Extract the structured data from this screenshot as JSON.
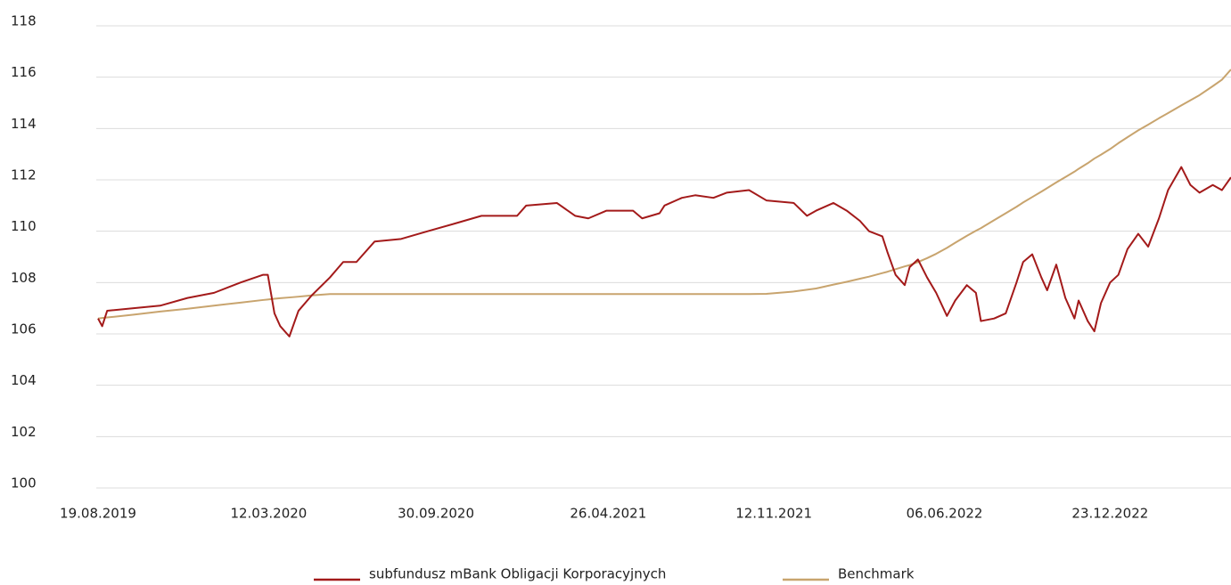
{
  "chart_data": {
    "type": "line",
    "x": [
      "19.08.2019",
      "24.08.2019",
      "30.08.2019",
      "01.10.2019",
      "02.11.2019",
      "05.12.2019",
      "06.01.2020",
      "07.02.2020",
      "05.03.2020",
      "11.03.2020",
      "19.03.2020",
      "26.03.2020",
      "06.04.2020",
      "17.04.2020",
      "03.05.2020",
      "25.05.2020",
      "10.06.2020",
      "26.06.2020",
      "18.07.2020",
      "19.08.2020",
      "20.09.2020",
      "23.10.2020",
      "24.11.2020",
      "06.01.2021",
      "17.01.2021",
      "23.02.2021",
      "17.03.2021",
      "02.04.2021",
      "24.04.2021",
      "26.05.2021",
      "06.06.2021",
      "27.06.2021",
      "03.07.2021",
      "24.07.2021",
      "09.08.2021",
      "31.08.2021",
      "16.09.2021",
      "13.10.2021",
      "03.11.2021",
      "06.12.2021",
      "22.12.2021",
      "02.01.2022",
      "23.01.2022",
      "08.02.2022",
      "24.02.2022",
      "07.03.2022",
      "23.03.2022",
      "29.03.2022",
      "08.04.2022",
      "19.04.2022",
      "25.04.2022",
      "05.05.2022",
      "16.05.2022",
      "27.05.2022",
      "09.06.2022",
      "19.06.2022",
      "03.07.2022",
      "14.07.2022",
      "20.07.2022",
      "05.08.2022",
      "19.08.2022",
      "01.09.2022",
      "09.09.2022",
      "20.09.2022",
      "01.10.2022",
      "08.10.2022",
      "19.10.2022",
      "30.10.2022",
      "10.11.2022",
      "15.11.2022",
      "26.11.2022",
      "04.12.2022",
      "12.12.2022",
      "23.12.2022",
      "02.01.2023",
      "13.01.2023",
      "26.01.2023",
      "07.02.2023",
      "20.02.2023",
      "03.03.2023",
      "19.03.2023",
      "30.03.2023",
      "10.04.2023",
      "26.04.2023",
      "07.05.2023",
      "18.05.2023"
    ],
    "series": [
      {
        "name": "subfundusz mBank Obligacji Korporacyjnych",
        "color": "#a31a1a",
        "values": [
          106.6,
          106.3,
          106.9,
          107.0,
          107.1,
          107.4,
          107.6,
          108.0,
          108.3,
          108.3,
          106.8,
          106.3,
          105.9,
          106.9,
          107.5,
          108.2,
          108.8,
          108.8,
          109.6,
          109.7,
          110.0,
          110.3,
          110.6,
          110.6,
          111.0,
          111.1,
          110.6,
          110.5,
          110.8,
          110.8,
          110.5,
          110.7,
          111.0,
          111.3,
          111.4,
          111.3,
          111.5,
          111.6,
          111.2,
          111.1,
          110.6,
          110.8,
          111.1,
          110.8,
          110.4,
          110.0,
          109.8,
          109.2,
          108.3,
          107.9,
          108.6,
          108.9,
          108.2,
          107.6,
          106.7,
          107.3,
          107.9,
          107.6,
          106.5,
          106.6,
          106.8,
          108.0,
          108.8,
          109.1,
          108.2,
          107.7,
          108.7,
          107.4,
          106.6,
          107.3,
          106.5,
          106.1,
          107.2,
          108.0,
          108.3,
          109.3,
          109.9,
          109.4,
          110.5,
          111.6,
          112.5,
          111.8,
          111.5,
          111.8,
          111.6,
          112.1
        ]
      },
      {
        "name": "Benchmark",
        "color": "#c8a46e",
        "values": [
          106.6,
          106.62,
          106.64,
          106.75,
          106.87,
          106.98,
          107.1,
          107.22,
          107.32,
          107.34,
          107.37,
          107.39,
          107.42,
          107.45,
          107.5,
          107.55,
          107.55,
          107.55,
          107.55,
          107.55,
          107.55,
          107.55,
          107.55,
          107.55,
          107.55,
          107.55,
          107.55,
          107.55,
          107.55,
          107.55,
          107.55,
          107.55,
          107.55,
          107.55,
          107.55,
          107.55,
          107.55,
          107.55,
          107.56,
          107.65,
          107.72,
          107.77,
          107.92,
          108.03,
          108.15,
          108.23,
          108.37,
          108.42,
          108.52,
          108.63,
          108.68,
          108.8,
          108.95,
          109.12,
          109.35,
          109.55,
          109.82,
          110.02,
          110.12,
          110.43,
          110.7,
          110.95,
          111.12,
          111.33,
          111.54,
          111.68,
          111.9,
          112.11,
          112.32,
          112.43,
          112.65,
          112.83,
          112.98,
          113.2,
          113.43,
          113.66,
          113.93,
          114.15,
          114.4,
          114.6,
          114.9,
          115.1,
          115.3,
          115.65,
          115.9,
          116.3
        ]
      }
    ],
    "xlim": [
      "19.08.2019",
      "18.05.2023"
    ],
    "xticks": [
      "19.08.2019",
      "12.03.2020",
      "30.09.2020",
      "26.04.2021",
      "12.11.2021",
      "06.06.2022",
      "23.12.2022"
    ],
    "ylim": [
      100,
      118
    ],
    "yticks": [
      100,
      102,
      104,
      106,
      108,
      110,
      112,
      114,
      116,
      118
    ],
    "grid": true,
    "legend": "bottom"
  }
}
